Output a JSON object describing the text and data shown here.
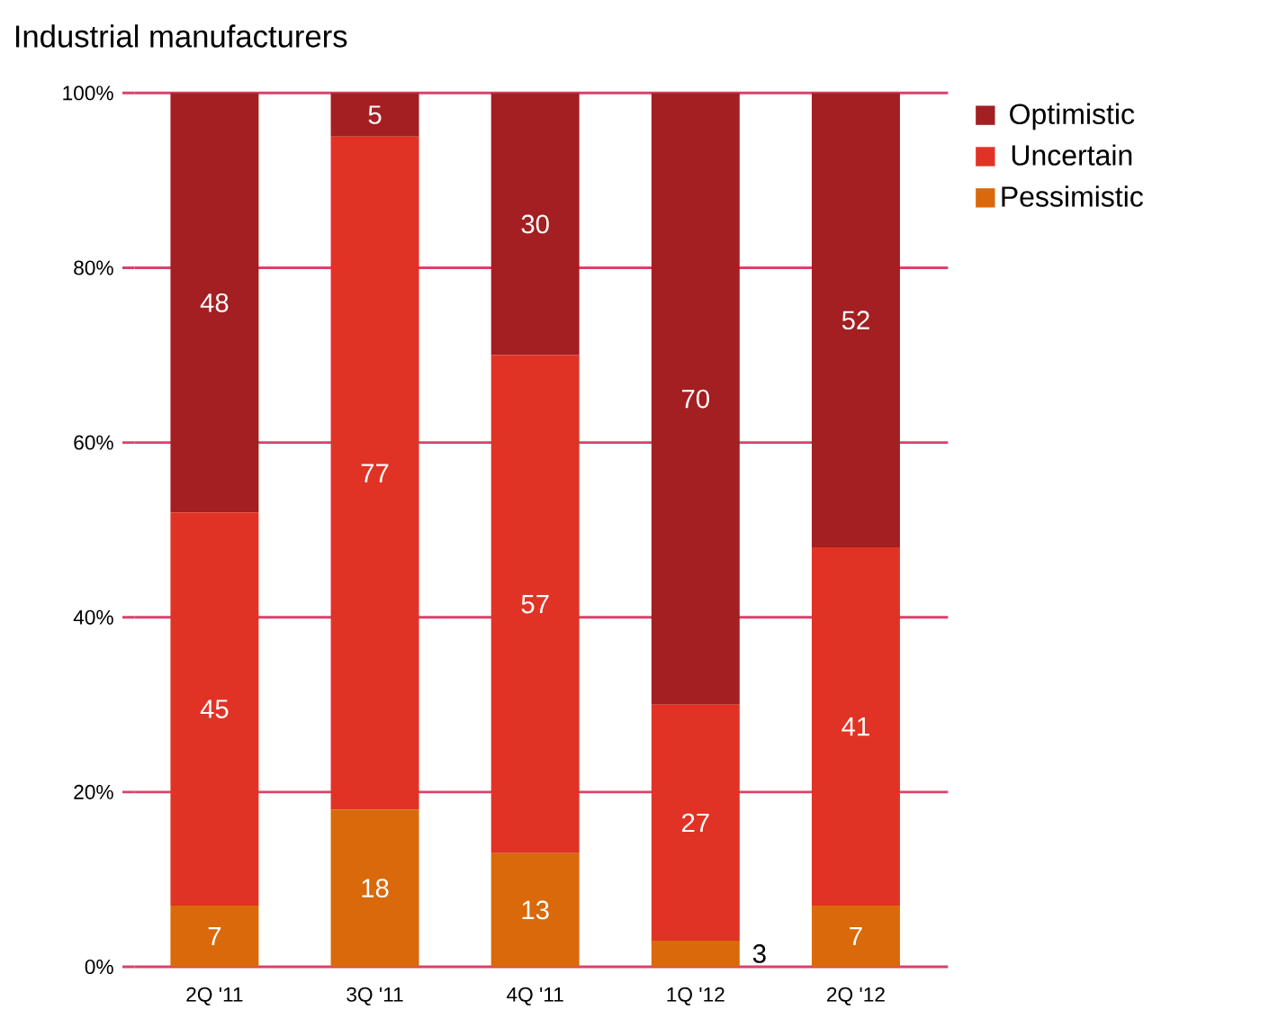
{
  "chart_data": {
    "type": "bar",
    "stacked": true,
    "title": "Industrial manufacturers",
    "categories": [
      "2Q '11",
      "3Q '11",
      "4Q '11",
      "1Q '12",
      "2Q '12"
    ],
    "series": [
      {
        "name": "Pessimistic",
        "color": "#d9690a",
        "values": [
          7,
          18,
          13,
          3,
          7
        ]
      },
      {
        "name": "Uncertain",
        "color": "#e03325",
        "values": [
          45,
          77,
          57,
          27,
          41
        ]
      },
      {
        "name": "Optimistic",
        "color": "#a31f22",
        "values": [
          48,
          5,
          30,
          70,
          52
        ]
      }
    ],
    "ylim": [
      0,
      100
    ],
    "yticks": [
      {
        "value": 0,
        "label": "0%"
      },
      {
        "value": 20,
        "label": "20%"
      },
      {
        "value": 40,
        "label": "40%"
      },
      {
        "value": 60,
        "label": "60%"
      },
      {
        "value": 80,
        "label": "80%"
      },
      {
        "value": 100,
        "label": "100%"
      }
    ],
    "grid": "y",
    "legend": "top right",
    "data_labels": true
  }
}
